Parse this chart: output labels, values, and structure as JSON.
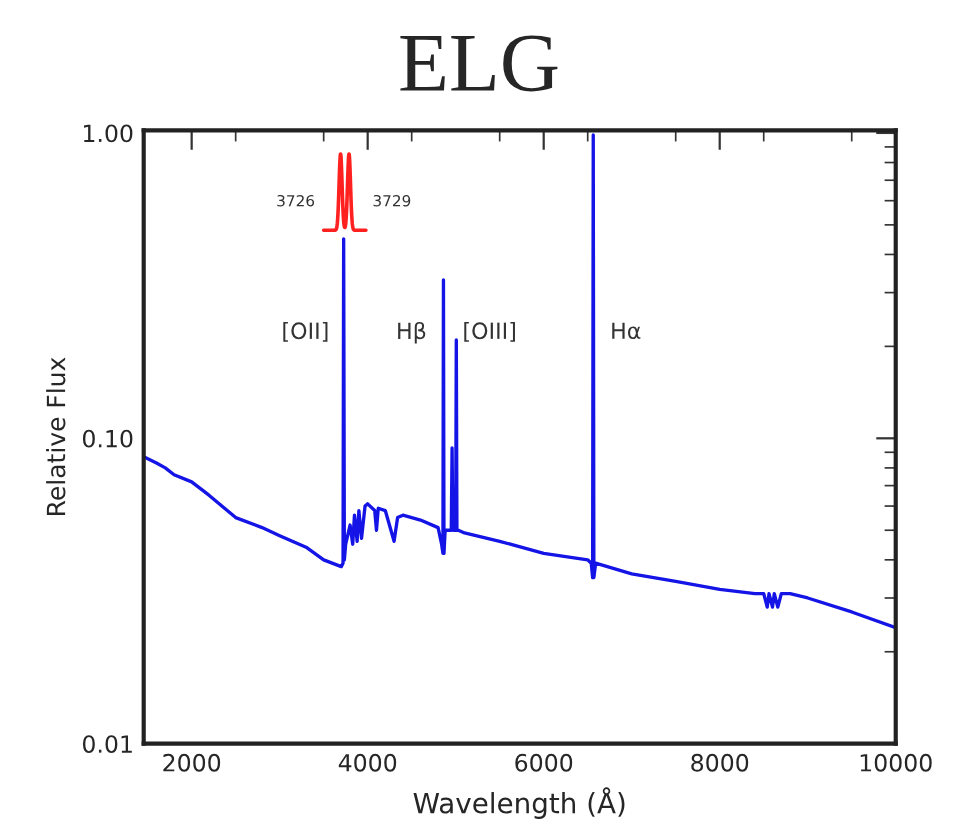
{
  "chart_data": {
    "type": "line",
    "title": "ELG",
    "xlabel": "Wavelength (Å)",
    "ylabel": "Relative Flux",
    "x": [
      1455,
      1600,
      1700,
      1800,
      2000,
      2200,
      2500,
      2800,
      3000,
      3300,
      3500,
      3700,
      3720,
      3727,
      3735,
      3750,
      3800,
      3830,
      3850,
      3880,
      3900,
      3930,
      3970,
      4000,
      4080,
      4100,
      4120,
      4200,
      4300,
      4340,
      4400,
      4600,
      4800,
      4840,
      4855,
      4861,
      4867,
      4880,
      4930,
      4950,
      4959,
      4968,
      4990,
      5000,
      5007,
      5014,
      5030,
      5100,
      5500,
      6000,
      6500,
      6540,
      6556,
      6563,
      6570,
      6590,
      7000,
      7500,
      8000,
      8400,
      8500,
      8540,
      8560,
      8600,
      8620,
      8660,
      8700,
      8800,
      9000,
      9500,
      10000
    ],
    "series": [
      {
        "color": "#1414e6",
        "values": [
          0.087,
          0.083,
          0.08,
          0.076,
          0.072,
          0.065,
          0.055,
          0.051,
          0.048,
          0.044,
          0.04,
          0.038,
          0.039,
          0.45,
          0.04,
          0.045,
          0.052,
          0.045,
          0.056,
          0.046,
          0.058,
          0.047,
          0.06,
          0.061,
          0.058,
          0.05,
          0.059,
          0.058,
          0.046,
          0.055,
          0.056,
          0.054,
          0.051,
          0.045,
          0.042,
          0.33,
          0.042,
          0.05,
          0.05,
          0.05,
          0.093,
          0.05,
          0.05,
          0.05,
          0.21,
          0.05,
          0.05,
          0.049,
          0.046,
          0.042,
          0.04,
          0.039,
          0.035,
          0.985,
          0.035,
          0.039,
          0.036,
          0.034,
          0.032,
          0.031,
          0.031,
          0.028,
          0.031,
          0.028,
          0.031,
          0.028,
          0.031,
          0.031,
          0.03,
          0.027,
          0.024
        ]
      }
    ],
    "xlim": [
      1455,
      10000
    ],
    "xticks": [
      2000,
      4000,
      6000,
      8000,
      10000
    ],
    "ylim": [
      0.01,
      1.02
    ],
    "yticks": [
      {
        "value": 0.01,
        "label": "0.01"
      },
      {
        "value": 0.1,
        "label": "0.10"
      },
      {
        "value": 1,
        "label": "1.00"
      }
    ],
    "log": "y",
    "grid": false,
    "legend": false,
    "annotations": [
      "[OII]",
      "Hβ",
      "[OIII]",
      "Hα",
      "3726",
      "3729"
    ]
  }
}
